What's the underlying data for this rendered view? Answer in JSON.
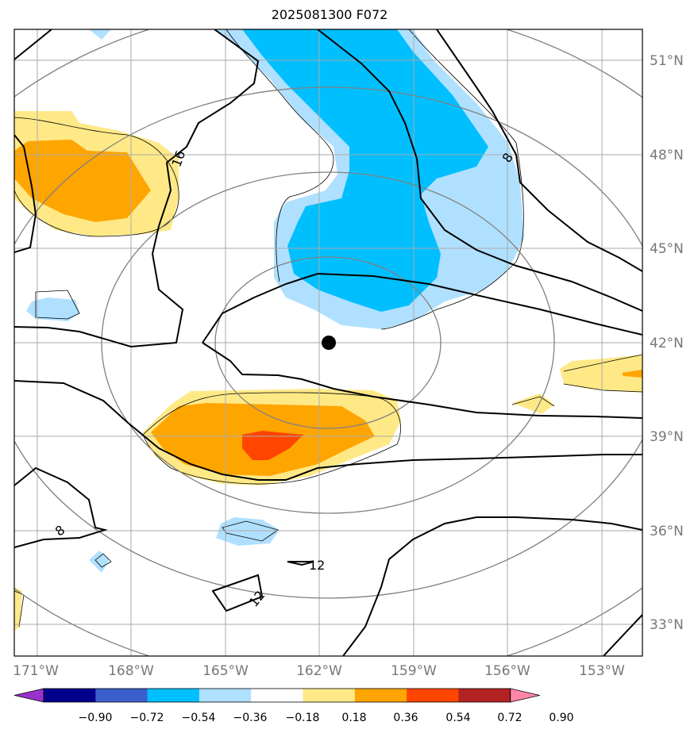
{
  "title": "2025081300 F072",
  "map": {
    "lat_labels": [
      "51°N",
      "48°N",
      "45°N",
      "42°N",
      "39°N",
      "36°N",
      "33°N"
    ],
    "lon_labels": [
      "171°W",
      "168°W",
      "165°W",
      "162°W",
      "159°W",
      "156°W",
      "153°W"
    ],
    "center_marker": {
      "lat": 42,
      "lon": -161.7
    },
    "contour_labels": [
      "16",
      "8",
      "8",
      "12",
      "12"
    ]
  },
  "colorbar": {
    "labels": [
      "−0.90",
      "−0.72",
      "−0.54",
      "−0.36",
      "−0.18",
      "0.18",
      "0.36",
      "0.54",
      "0.72",
      "0.90"
    ],
    "colors": [
      "#9932CC",
      "#00008B",
      "#3A5FCD",
      "#00BFFF",
      "#B0E0FF",
      "#FFFFFF",
      "#FFE987",
      "#FFA500",
      "#FF4500",
      "#B22222",
      "#FF86A8"
    ]
  },
  "fill_colors": {
    "light_blue": "#B0E0FF",
    "blue": "#00BFFF",
    "yellow": "#FFE987",
    "orange": "#FFA500",
    "red": "#FF4500"
  }
}
